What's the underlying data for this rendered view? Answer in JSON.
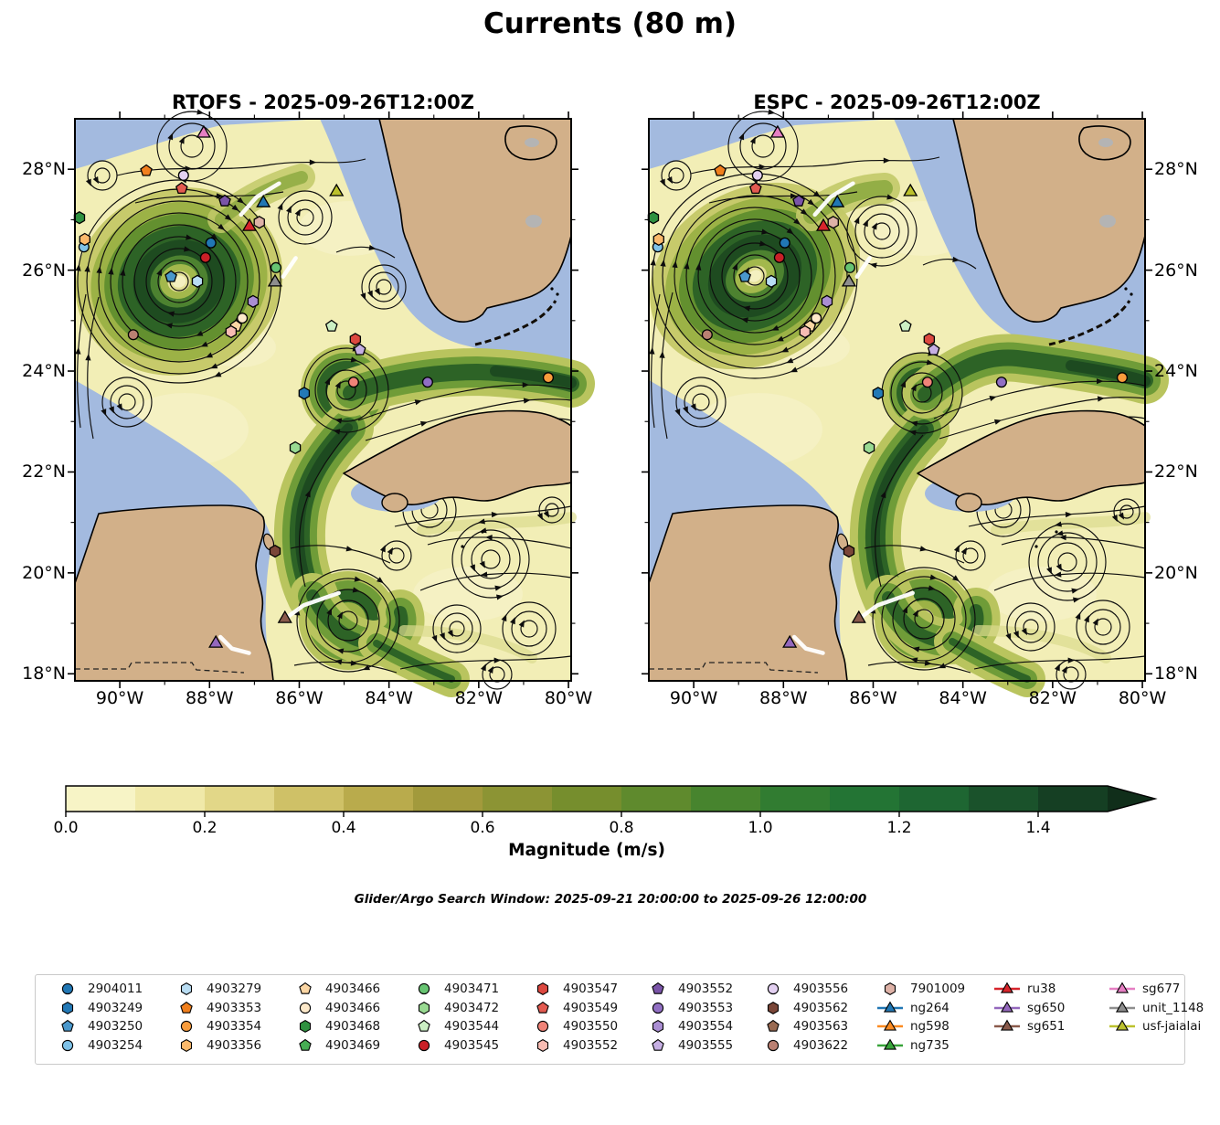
{
  "figure": {
    "background": "#ffffff"
  },
  "chart_data": {
    "type": "map_streamplot_comparison",
    "suptitle": "Currents (80 m)",
    "depth_label": "80 m",
    "panels": [
      {
        "model": "RTOFS",
        "title": "RTOFS - 2025-09-26T12:00Z",
        "valid_time": "2025-09-26T12:00Z"
      },
      {
        "model": "ESPC",
        "title": "ESPC - 2025-09-26T12:00Z",
        "valid_time": "2025-09-26T12:00Z"
      }
    ],
    "extent": {
      "lon_min": -91.0,
      "lon_max": -79.94,
      "lat_min": 17.86,
      "lat_max": 29.0
    },
    "xticks": {
      "lons": [
        -90,
        -88,
        -86,
        -84,
        -82,
        -80
      ],
      "labels": [
        "90°W",
        "88°W",
        "86°W",
        "84°W",
        "82°W",
        "80°W"
      ]
    },
    "yticks": {
      "lats": [
        28,
        26,
        24,
        22,
        20,
        18
      ],
      "labels": [
        "28°N",
        "26°N",
        "24°N",
        "22°N",
        "20°N",
        "18°N"
      ]
    },
    "minor_tick_interval_deg": 1,
    "colorbar": {
      "label": "Magnitude (m/s)",
      "vmin": 0.0,
      "vmax": 1.5,
      "extend": "max",
      "tick_values": [
        0.0,
        0.2,
        0.4,
        0.6,
        0.8,
        1.0,
        1.2,
        1.4
      ],
      "tick_labels": [
        "0.0",
        "0.2",
        "0.4",
        "0.6",
        "0.8",
        "1.0",
        "1.2",
        "1.4"
      ],
      "segment_colors": [
        "#f7f4c6",
        "#f0e9a9",
        "#e2d788",
        "#cfc167",
        "#b9ab4c",
        "#a29a3c",
        "#8c9434",
        "#768e2d",
        "#5f8a2d",
        "#47842e",
        "#317c31",
        "#237434",
        "#1e6632",
        "#1a522b",
        "#153f23"
      ],
      "extend_color": "#102e1a"
    },
    "search_window": {
      "text": "Glider/Argo Search Window: 2025-09-21 20:00:00 to 2025-09-26 12:00:00",
      "start": "2025-09-21 20:00:00",
      "end": "2025-09-26 12:00:00"
    },
    "map_colors": {
      "water": "#a3badf",
      "land": "#d2b089",
      "coast": "#000000",
      "field_base": "#f2eeb6",
      "nodata_gray": "#b4b4b4",
      "track": "#ffffff"
    },
    "legend_columns": [
      [
        "2904011",
        "4903249",
        "4903250",
        "4903254"
      ],
      [
        "4903279",
        "4903353",
        "4903354",
        "4903356"
      ],
      [
        "4903466p",
        "4903466c",
        "4903468",
        "4903469"
      ],
      [
        "4903471",
        "4903472",
        "4903544",
        "4903545"
      ],
      [
        "4903547",
        "4903549",
        "4903550",
        "4903552h"
      ],
      [
        "4903552p",
        "4903553",
        "4903554",
        "4903555"
      ],
      [
        "4903556",
        "4903562",
        "4903563",
        "4903622"
      ],
      [
        "7901009",
        "ng264",
        "ng598",
        "ng735"
      ],
      [
        "ru38",
        "sg650",
        "sg651"
      ],
      [
        "sg677",
        "unit_1148",
        "usf-jaialai"
      ]
    ],
    "platforms": {
      "2904011": {
        "label": "2904011",
        "marker": "circle",
        "color": "#2177b4",
        "kind": "argo",
        "lon": -87.97,
        "lat": 26.54
      },
      "4903249": {
        "label": "4903249",
        "marker": "hexagon",
        "color": "#2379b6",
        "kind": "argo",
        "lon": -85.89,
        "lat": 23.56
      },
      "4903250": {
        "label": "4903250",
        "marker": "pentagon",
        "color": "#4a98cc",
        "kind": "argo",
        "lon": -88.86,
        "lat": 25.87
      },
      "4903254": {
        "label": "4903254",
        "marker": "circle",
        "color": "#7fc2e8",
        "kind": "argo",
        "lon": -90.8,
        "lat": 26.46
      },
      "4903279": {
        "label": "4903279",
        "marker": "hexagon",
        "color": "#b9ddf3",
        "kind": "argo",
        "lon": -88.27,
        "lat": 25.78
      },
      "4903353": {
        "label": "4903353",
        "marker": "pentagon",
        "color": "#f07f1d",
        "kind": "argo",
        "lon": -89.41,
        "lat": 27.97
      },
      "4903354": {
        "label": "4903354",
        "marker": "circle",
        "color": "#f99c3c",
        "kind": "argo",
        "lon": -80.45,
        "lat": 23.87
      },
      "4903356": {
        "label": "4903356",
        "marker": "hexagon",
        "color": "#fbb96b",
        "kind": "argo",
        "lon": -90.78,
        "lat": 26.61
      },
      "4903466p": {
        "label": "4903466",
        "marker": "pentagon",
        "color": "#fbd6a4",
        "kind": "argo",
        "lon": -87.41,
        "lat": 24.89
      },
      "4903466c": {
        "label": "4903466",
        "marker": "circle",
        "color": "#fde9ca",
        "kind": "argo",
        "lon": -87.27,
        "lat": 25.05
      },
      "4903468": {
        "label": "4903468",
        "marker": "hexagon",
        "color": "#2f9140",
        "kind": "argo",
        "lon": -90.9,
        "lat": 27.04
      },
      "4903469": {
        "label": "4903469",
        "marker": "pentagon",
        "color": "#46ad53",
        "kind": "argo"
      },
      "4903471": {
        "label": "4903471",
        "marker": "circle",
        "color": "#67c472",
        "kind": "argo",
        "lon": -86.52,
        "lat": 26.05
      },
      "4903472": {
        "label": "4903472",
        "marker": "hexagon",
        "color": "#99da92",
        "kind": "argo",
        "lon": -86.09,
        "lat": 22.48
      },
      "4903544": {
        "label": "4903544",
        "marker": "pentagon",
        "color": "#cbefc3",
        "kind": "argo",
        "lon": -85.28,
        "lat": 24.89
      },
      "4903545": {
        "label": "4903545",
        "marker": "circle",
        "color": "#c92027",
        "kind": "argo",
        "lon": -88.09,
        "lat": 26.25
      },
      "4903547": {
        "label": "4903547",
        "marker": "hexagon",
        "color": "#dc4840",
        "kind": "argo",
        "lon": -84.75,
        "lat": 24.63
      },
      "4903549": {
        "label": "4903549",
        "marker": "pentagon",
        "color": "#e35a50",
        "kind": "argo",
        "lon": -88.62,
        "lat": 27.62
      },
      "4903550": {
        "label": "4903550",
        "marker": "circle",
        "color": "#f08378",
        "kind": "argo",
        "lon": -84.79,
        "lat": 23.78
      },
      "4903552h": {
        "label": "4903552",
        "marker": "hexagon",
        "color": "#f8bcb3",
        "kind": "argo",
        "lon": -87.52,
        "lat": 24.78
      },
      "4903552p": {
        "label": "4903552",
        "marker": "pentagon",
        "color": "#7a54a8",
        "kind": "argo",
        "lon": -87.66,
        "lat": 27.37
      },
      "4903553": {
        "label": "4903553",
        "marker": "circle",
        "color": "#916fc3",
        "kind": "argo",
        "lon": -83.14,
        "lat": 23.78
      },
      "4903554": {
        "label": "4903554",
        "marker": "hexagon",
        "color": "#aa8ed3",
        "kind": "argo",
        "lon": -87.03,
        "lat": 25.38
      },
      "4903555": {
        "label": "4903555",
        "marker": "pentagon",
        "color": "#c6afe3",
        "kind": "argo",
        "lon": -84.65,
        "lat": 24.42
      },
      "4903556": {
        "label": "4903556",
        "marker": "circle",
        "color": "#e3d0f1",
        "kind": "argo",
        "lon": -88.58,
        "lat": 27.88
      },
      "4903562": {
        "label": "4903562",
        "marker": "hexagon",
        "color": "#7a4638",
        "kind": "argo",
        "lon": -86.54,
        "lat": 20.43
      },
      "4903563": {
        "label": "4903563",
        "marker": "pentagon",
        "color": "#996a52",
        "kind": "argo"
      },
      "4903622": {
        "label": "4903622",
        "marker": "circle",
        "color": "#ba8072",
        "kind": "argo",
        "lon": -89.7,
        "lat": 24.72
      },
      "7901009": {
        "label": "7901009",
        "marker": "hexagon",
        "color": "#deb2a7",
        "kind": "argo",
        "lon": -86.89,
        "lat": 26.95
      },
      "ng264": {
        "label": "ng264",
        "marker": "triangle",
        "color": "#2177b4",
        "kind": "glider",
        "lon": -86.8,
        "lat": 27.33
      },
      "ng598": {
        "label": "ng598",
        "marker": "triangle",
        "color": "#fc8b21",
        "kind": "glider"
      },
      "ng735": {
        "label": "ng735",
        "marker": "triangle",
        "color": "#38a43a",
        "kind": "glider"
      },
      "ru38": {
        "label": "ru38",
        "marker": "triangle",
        "color": "#d7252c",
        "kind": "glider",
        "lon": -87.11,
        "lat": 26.86
      },
      "sg650": {
        "label": "sg650",
        "marker": "triangle",
        "color": "#9468bd",
        "kind": "glider",
        "lon": -87.86,
        "lat": 18.6
      },
      "sg651": {
        "label": "sg651",
        "marker": "triangle",
        "color": "#8a5a4b",
        "kind": "glider",
        "lon": -86.32,
        "lat": 19.09
      },
      "sg677": {
        "label": "sg677",
        "marker": "triangle",
        "color": "#e67fc3",
        "kind": "glider",
        "lon": -88.13,
        "lat": 28.71
      },
      "unit_1148": {
        "label": "unit_1148",
        "marker": "triangle",
        "color": "#8e8e8e",
        "kind": "glider",
        "lon": -86.54,
        "lat": 25.76
      },
      "usf-jaialai": {
        "label": "usf-jaialai",
        "marker": "triangle",
        "color": "#bcc12d",
        "kind": "glider",
        "lon": -85.17,
        "lat": 27.55
      }
    },
    "glider_tracks": [
      {
        "id": "ng264",
        "points": [
          [
            -87.3,
            27.1
          ],
          [
            -86.95,
            27.45
          ],
          [
            -86.45,
            27.72
          ]
        ]
      },
      {
        "id": "unit_1148",
        "points": [
          [
            -86.36,
            25.87
          ],
          [
            -86.08,
            26.24
          ]
        ]
      },
      {
        "id": "sg651",
        "points": [
          [
            -86.38,
            19.05
          ],
          [
            -85.9,
            19.36
          ],
          [
            -85.12,
            19.6
          ]
        ]
      },
      {
        "id": "sg650",
        "points": [
          [
            -87.76,
            18.73
          ],
          [
            -87.5,
            18.5
          ],
          [
            -87.12,
            18.41
          ]
        ]
      }
    ]
  }
}
